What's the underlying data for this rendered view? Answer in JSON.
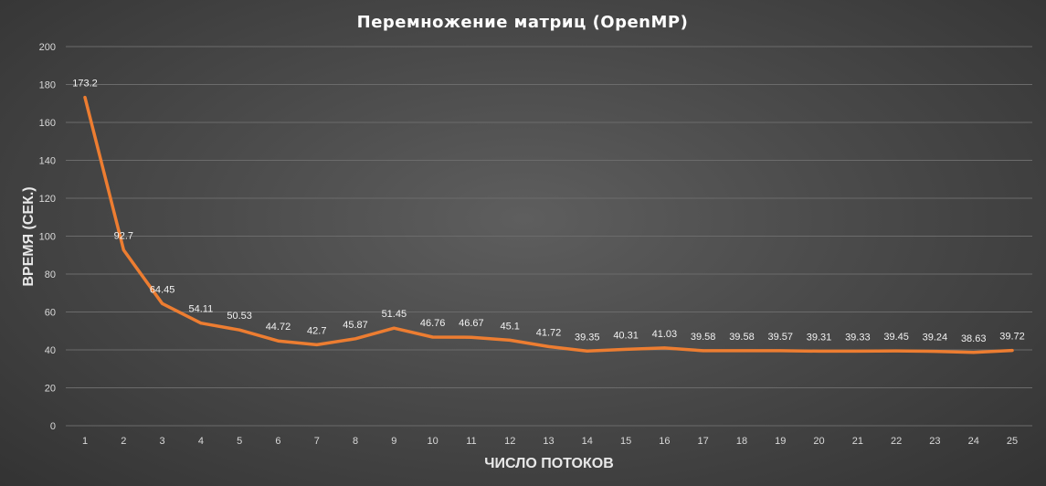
{
  "chart_data": {
    "type": "line",
    "title": "Перемножение матриц (OpenMP)",
    "xlabel": "ЧИСЛО ПОТОКОВ",
    "ylabel": "ВРЕМЯ (СЕК.)",
    "ylim": [
      0,
      200
    ],
    "yticks": [
      0,
      20,
      40,
      60,
      80,
      100,
      120,
      140,
      160,
      180,
      200
    ],
    "grid": true,
    "categories": [
      "1",
      "2",
      "3",
      "4",
      "5",
      "6",
      "7",
      "8",
      "9",
      "10",
      "11",
      "12",
      "13",
      "14",
      "15",
      "16",
      "17",
      "18",
      "19",
      "20",
      "21",
      "22",
      "23",
      "24",
      "25"
    ],
    "series": [
      {
        "values": [
          173.2,
          92.7,
          64.45,
          54.11,
          50.53,
          44.72,
          42.7,
          45.87,
          51.45,
          46.76,
          46.67,
          45.1,
          41.72,
          39.35,
          40.31,
          41.03,
          39.58,
          39.58,
          39.57,
          39.31,
          39.33,
          39.45,
          39.24,
          38.63,
          39.72
        ],
        "labels": [
          "173.2",
          "92.7",
          "64.45",
          "54.11",
          "50.53",
          "44.72",
          "42.7",
          "45.87",
          "51.45",
          "46.76",
          "46.67",
          "45.1",
          "41.72",
          "39.35",
          "40.31",
          "41.03",
          "39.58",
          "39.58",
          "39.57",
          "39.31",
          "39.33",
          "39.45",
          "39.24",
          "38.63",
          "39.72"
        ],
        "color": "#ed7d31"
      }
    ]
  }
}
